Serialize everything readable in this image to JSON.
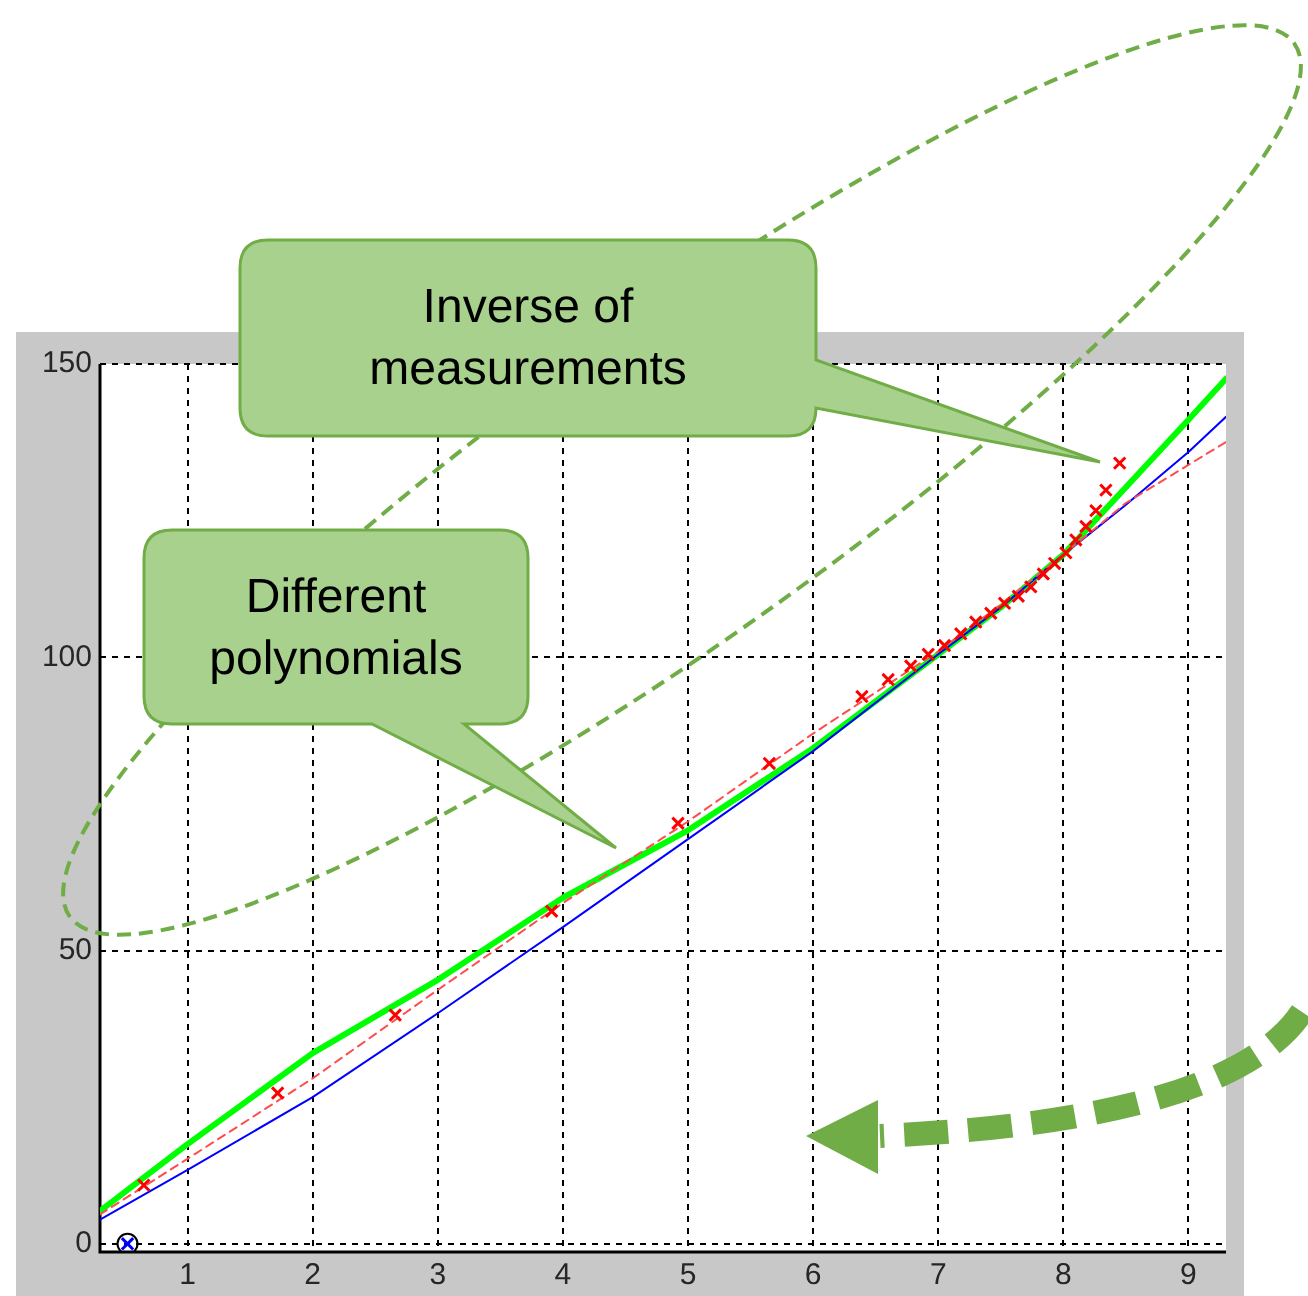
{
  "chart_data": {
    "type": "line",
    "xlim": [
      0.3,
      9.3
    ],
    "ylim": [
      -1.4,
      150
    ],
    "xticks": [
      1,
      2,
      3,
      4,
      5,
      6,
      7,
      8,
      9
    ],
    "yticks": [
      0,
      50,
      100,
      150
    ],
    "grid": true,
    "series": [
      {
        "type": "line",
        "color": "#00ff00",
        "marker": "none",
        "line_style": "solid",
        "x": [
          0.3,
          1,
          2,
          3,
          4,
          5,
          6,
          7,
          7.5,
          8,
          8.5,
          9,
          9.3
        ],
        "values": [
          5.6,
          17,
          32.5,
          45,
          59,
          70.5,
          84.5,
          100.5,
          108.5,
          117.5,
          129,
          140.5,
          147.5
        ]
      },
      {
        "type": "line",
        "color": "#0000ff",
        "marker": "none",
        "line_style": "solid",
        "x": [
          0.3,
          1,
          2,
          3,
          4,
          5,
          6,
          7,
          7.5,
          8,
          8.5,
          9,
          9.3
        ],
        "values": [
          4.1,
          12.6,
          25,
          39.3,
          54,
          69,
          84,
          100.5,
          108.5,
          117.5,
          126,
          135,
          141
        ]
      },
      {
        "type": "line",
        "color": "#ff4d4d",
        "marker": "none",
        "line_style": "dashed",
        "x": [
          0.3,
          1,
          2,
          3,
          4,
          5,
          6,
          7,
          7.5,
          8,
          8.5,
          9,
          9.3
        ],
        "values": [
          5,
          14.5,
          28.2,
          43.3,
          58.1,
          72,
          87,
          101,
          109,
          117.5,
          126.3,
          132.8,
          136.7
        ]
      },
      {
        "type": "scatter",
        "color": "#ff0000",
        "marker": "cross",
        "x": [
          0.65,
          1.72,
          2.66,
          3.91,
          4.92,
          5.65,
          6.39,
          6.6,
          6.78,
          6.92,
          7.05,
          7.18,
          7.3,
          7.42,
          7.53,
          7.64,
          7.74,
          7.84,
          7.93,
          8.02,
          8.1,
          8.18,
          8.26,
          8.34,
          8.45
        ],
        "values": [
          10,
          25.7,
          39,
          56.7,
          71.7,
          81.9,
          93.3,
          96.2,
          98.5,
          100.5,
          102,
          104,
          106,
          107.5,
          109.2,
          110.4,
          112,
          114.2,
          116,
          117.8,
          120,
          122.3,
          125,
          128.5,
          133.1
        ]
      },
      {
        "type": "scatter",
        "color": "#000000",
        "marker": "circle",
        "x": [
          0.52
        ],
        "values": [
          0
        ]
      },
      {
        "type": "scatter",
        "color": "#0000ff",
        "marker": "cross",
        "x": [
          0.52
        ],
        "values": [
          0
        ]
      }
    ],
    "annotations": [
      "Inverse of measurements",
      "Different polynomials"
    ]
  }
}
